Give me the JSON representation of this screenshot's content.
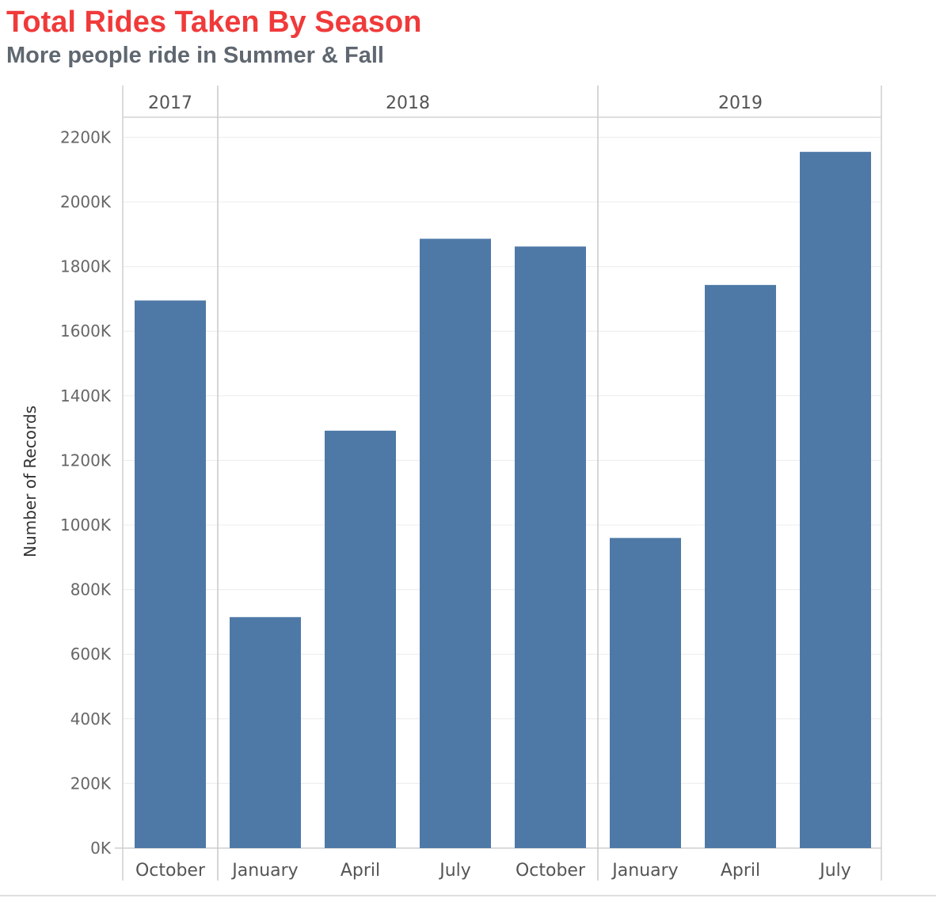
{
  "chart_data": {
    "type": "bar",
    "title": "Total Rides Taken By Season",
    "subtitle": "More people ride in Summer & Fall",
    "ylabel": "Number of Records",
    "ylim": [
      0,
      2300000
    ],
    "yticks": [
      0,
      200000,
      400000,
      600000,
      800000,
      1000000,
      1200000,
      1400000,
      1600000,
      1800000,
      2000000,
      2200000
    ],
    "ytick_labels": [
      "0K",
      "200K",
      "400K",
      "600K",
      "800K",
      "1000K",
      "1200K",
      "1400K",
      "1600K",
      "1800K",
      "2000K",
      "2200K"
    ],
    "grid": true,
    "legend": "none",
    "colors": {
      "bar": "#4e79a7",
      "title": "#f03a3a"
    },
    "groups": [
      {
        "label": "2017",
        "categories": [
          "October"
        ],
        "values": [
          1695000
        ]
      },
      {
        "label": "2018",
        "categories": [
          "January",
          "April",
          "July",
          "October"
        ],
        "values": [
          715000,
          1292000,
          1886000,
          1862000
        ]
      },
      {
        "label": "2019",
        "categories": [
          "January",
          "April",
          "July"
        ],
        "values": [
          960000,
          1743000,
          2155000
        ]
      }
    ]
  }
}
